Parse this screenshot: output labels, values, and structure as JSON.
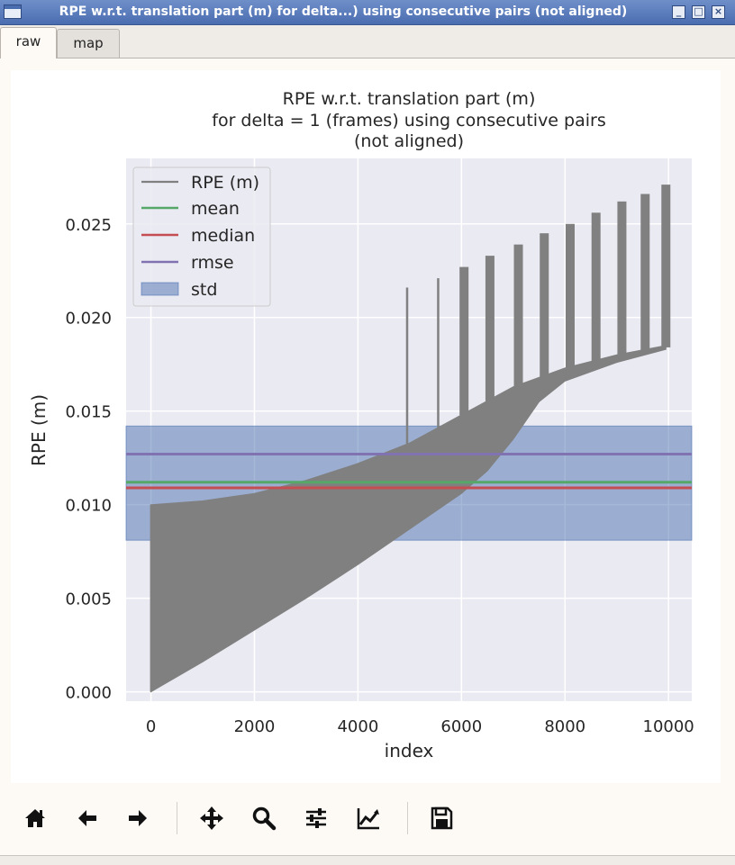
{
  "window": {
    "title": "RPE w.r.t. translation part (m) for delta...) using consecutive pairs (not aligned)",
    "minimize_glyph": "_",
    "maximize_glyph": "□",
    "close_glyph": "×"
  },
  "tabs": [
    {
      "label": "raw",
      "active": true
    },
    {
      "label": "map",
      "active": false
    }
  ],
  "toolbar": {
    "icons": [
      "home-icon",
      "back-arrow-icon",
      "forward-arrow-icon",
      "pan-icon",
      "zoom-icon",
      "configure-subplots-icon",
      "edit-axis-icon",
      "save-icon"
    ]
  },
  "chart_data": {
    "type": "line",
    "title": "RPE w.r.t. translation part (m)",
    "title_lines": [
      "RPE w.r.t. translation part (m)",
      "for delta = 1 (frames) using consecutive pairs",
      "(not aligned)"
    ],
    "xlabel": "index",
    "ylabel": "RPE (m)",
    "xlim": [
      -480,
      10450
    ],
    "ylim": [
      -0.0005,
      0.0285
    ],
    "xticks": [
      0,
      2000,
      4000,
      6000,
      8000,
      10000
    ],
    "xtick_labels": [
      "0",
      "2000",
      "4000",
      "6000",
      "8000",
      "10000"
    ],
    "yticks": [
      0.0,
      0.005,
      0.01,
      0.015,
      0.02,
      0.025
    ],
    "ytick_labels": [
      "0.000",
      "0.005",
      "0.010",
      "0.015",
      "0.020",
      "0.025"
    ],
    "grid": true,
    "legend_position": "top-left",
    "legend": [
      "RPE (m)",
      "mean",
      "median",
      "rmse",
      "std"
    ],
    "series": [
      {
        "name": "RPE (m)",
        "color": "#808080",
        "x_range": [
          0,
          9950
        ],
        "upper_envelope": [
          [
            0,
            0.01
          ],
          [
            1000,
            0.0102
          ],
          [
            2000,
            0.0106
          ],
          [
            3000,
            0.0113
          ],
          [
            4000,
            0.0122
          ],
          [
            5000,
            0.0133
          ],
          [
            6000,
            0.0148
          ],
          [
            7000,
            0.0163
          ],
          [
            8000,
            0.0173
          ],
          [
            9000,
            0.018
          ],
          [
            9950,
            0.0185
          ]
        ],
        "lower_envelope": [
          [
            0,
            0.0
          ],
          [
            1000,
            0.0016
          ],
          [
            2000,
            0.0033
          ],
          [
            3000,
            0.005
          ],
          [
            4000,
            0.0068
          ],
          [
            5000,
            0.0087
          ],
          [
            6000,
            0.0106
          ],
          [
            6500,
            0.0118
          ],
          [
            7000,
            0.0135
          ],
          [
            7500,
            0.0155
          ],
          [
            8000,
            0.0166
          ],
          [
            9000,
            0.0176
          ],
          [
            9950,
            0.0183
          ]
        ],
        "spikes": [
          [
            4950,
            0.0216
          ],
          [
            5550,
            0.0221
          ],
          [
            6050,
            0.0227
          ],
          [
            6550,
            0.0233
          ],
          [
            7100,
            0.0239
          ],
          [
            7600,
            0.0245
          ],
          [
            8100,
            0.025
          ],
          [
            8600,
            0.0256
          ],
          [
            9100,
            0.0262
          ],
          [
            9550,
            0.0266
          ],
          [
            9950,
            0.0271
          ]
        ]
      },
      {
        "name": "mean",
        "color": "#55a868",
        "value": 0.0112
      },
      {
        "name": "median",
        "color": "#c44e52",
        "value": 0.0109
      },
      {
        "name": "rmse",
        "color": "#8172b2",
        "value": 0.0127
      },
      {
        "name": "std",
        "color": "#4c72b0",
        "range": [
          0.0081,
          0.0142
        ]
      }
    ]
  }
}
